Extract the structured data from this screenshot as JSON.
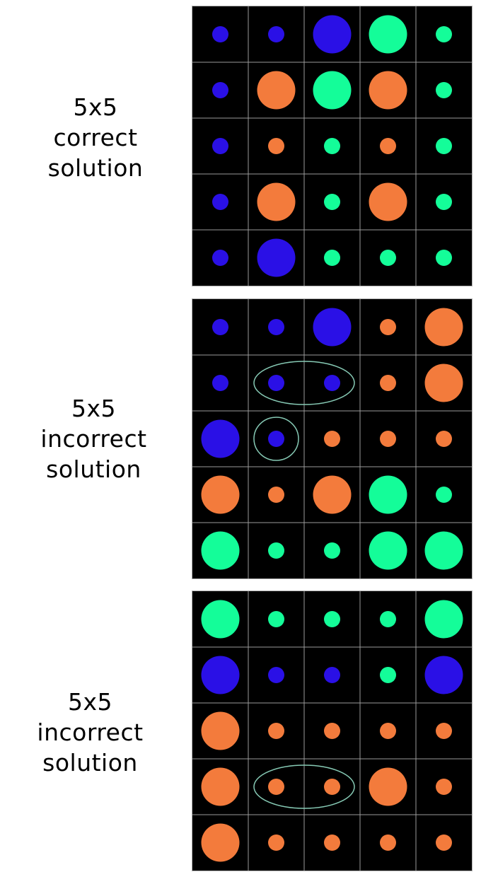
{
  "colors": {
    "blue": "#2a10e6",
    "orange": "#f37b3c",
    "green": "#14fd99",
    "grid": "#9a9a9a",
    "highlight": "#86c9b4",
    "background": "#000000"
  },
  "puzzles": [
    {
      "label_lines": [
        "5x5",
        "correct",
        "solution"
      ],
      "grid": [
        [
          [
            "blue",
            "small"
          ],
          [
            "blue",
            "small"
          ],
          [
            "blue",
            "large"
          ],
          [
            "green",
            "large"
          ],
          [
            "green",
            "small"
          ]
        ],
        [
          [
            "blue",
            "small"
          ],
          [
            "orange",
            "large"
          ],
          [
            "green",
            "large"
          ],
          [
            "orange",
            "large"
          ],
          [
            "green",
            "small"
          ]
        ],
        [
          [
            "blue",
            "small"
          ],
          [
            "orange",
            "small"
          ],
          [
            "green",
            "small"
          ],
          [
            "orange",
            "small"
          ],
          [
            "green",
            "small"
          ]
        ],
        [
          [
            "blue",
            "small"
          ],
          [
            "orange",
            "large"
          ],
          [
            "green",
            "small"
          ],
          [
            "orange",
            "large"
          ],
          [
            "green",
            "small"
          ]
        ],
        [
          [
            "blue",
            "small"
          ],
          [
            "blue",
            "large"
          ],
          [
            "green",
            "small"
          ],
          [
            "green",
            "small"
          ],
          [
            "green",
            "small"
          ]
        ]
      ],
      "highlights": []
    },
    {
      "label_lines": [
        "5x5",
        "incorrect",
        "solution"
      ],
      "grid": [
        [
          [
            "blue",
            "small"
          ],
          [
            "blue",
            "small"
          ],
          [
            "blue",
            "large"
          ],
          [
            "orange",
            "small"
          ],
          [
            "orange",
            "large"
          ]
        ],
        [
          [
            "blue",
            "small"
          ],
          [
            "blue",
            "small"
          ],
          [
            "blue",
            "small"
          ],
          [
            "orange",
            "small"
          ],
          [
            "orange",
            "large"
          ]
        ],
        [
          [
            "blue",
            "large"
          ],
          [
            "blue",
            "small"
          ],
          [
            "orange",
            "small"
          ],
          [
            "orange",
            "small"
          ],
          [
            "orange",
            "small"
          ]
        ],
        [
          [
            "orange",
            "large"
          ],
          [
            "orange",
            "small"
          ],
          [
            "orange",
            "large"
          ],
          [
            "green",
            "large"
          ],
          [
            "green",
            "small"
          ]
        ],
        [
          [
            "green",
            "large"
          ],
          [
            "green",
            "small"
          ],
          [
            "green",
            "small"
          ],
          [
            "green",
            "large"
          ],
          [
            "green",
            "large"
          ]
        ]
      ],
      "highlights": [
        {
          "cells": [
            [
              1,
              1
            ],
            [
              1,
              2
            ]
          ]
        },
        {
          "cells": [
            [
              2,
              1
            ]
          ]
        }
      ]
    },
    {
      "label_lines": [
        "5x5",
        "incorrect",
        "solution"
      ],
      "grid": [
        [
          [
            "green",
            "large"
          ],
          [
            "green",
            "small"
          ],
          [
            "green",
            "small"
          ],
          [
            "green",
            "small"
          ],
          [
            "green",
            "large"
          ]
        ],
        [
          [
            "blue",
            "large"
          ],
          [
            "blue",
            "small"
          ],
          [
            "blue",
            "small"
          ],
          [
            "green",
            "small"
          ],
          [
            "blue",
            "large"
          ]
        ],
        [
          [
            "orange",
            "large"
          ],
          [
            "orange",
            "small"
          ],
          [
            "orange",
            "small"
          ],
          [
            "orange",
            "small"
          ],
          [
            "orange",
            "small"
          ]
        ],
        [
          [
            "orange",
            "large"
          ],
          [
            "orange",
            "small"
          ],
          [
            "orange",
            "small"
          ],
          [
            "orange",
            "large"
          ],
          [
            "orange",
            "small"
          ]
        ],
        [
          [
            "orange",
            "large"
          ],
          [
            "orange",
            "small"
          ],
          [
            "orange",
            "small"
          ],
          [
            "orange",
            "small"
          ],
          [
            "orange",
            "small"
          ]
        ]
      ],
      "highlights": [
        {
          "cells": [
            [
              3,
              1
            ],
            [
              3,
              2
            ]
          ]
        }
      ]
    }
  ]
}
